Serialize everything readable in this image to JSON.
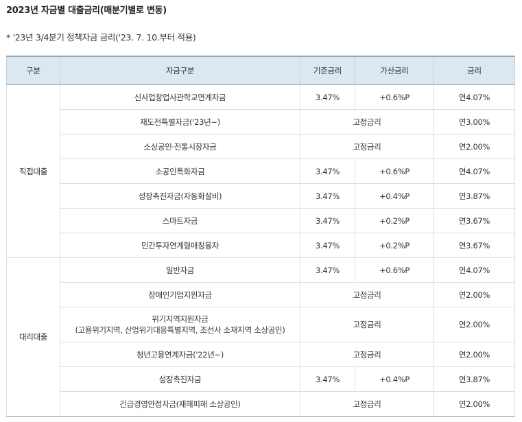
{
  "page": {
    "title": "2023년 자금별 대출금리(매분기별로 변동)",
    "note": "* '23년 3/4분기 정책자금 금리('23. 7. 10.부터 적용)"
  },
  "table": {
    "headers": [
      "구분",
      "자금구분",
      "기준금리",
      "가산금리",
      "금리"
    ],
    "groups": [
      {
        "category": "직접대출",
        "rows": [
          {
            "fund": "신사업창업사관학교연계자금",
            "base": "3.47%",
            "add": "+0.6%P",
            "rate": "연4.07%"
          },
          {
            "fund": "재도전특별자금('23년~)",
            "fixed": "고정금리",
            "rate": "연3.00%"
          },
          {
            "fund": "소상공인·전통시장자금",
            "fixed": "고정금리",
            "rate": "연2.00%"
          },
          {
            "fund": "소공인특화자금",
            "base": "3.47%",
            "add": "+0.6%P",
            "rate": "연4.07%"
          },
          {
            "fund": "성장촉진자금(자동화설비)",
            "base": "3.47%",
            "add": "+0.4%P",
            "rate": "연3.87%"
          },
          {
            "fund": "스마트자금",
            "base": "3.47%",
            "add": "+0.2%P",
            "rate": "연3.67%"
          },
          {
            "fund": "민간투자연계형매칭융자",
            "base": "3.47%",
            "add": "+0.2%P",
            "rate": "연3.67%"
          }
        ]
      },
      {
        "category": "대리대출",
        "rows": [
          {
            "fund": "일반자금",
            "base": "3.47%",
            "add": "+0.6%P",
            "rate": "연4.07%"
          },
          {
            "fund": "장애인기업지원자금",
            "fixed": "고정금리",
            "rate": "연2.00%"
          },
          {
            "fund": "위기지역지원자금",
            "fund_sub": "(고용위기지역, 산업위기대응특별지역, 조선사 소재지역 소상공인)",
            "fixed": "고정금리",
            "rate": "연2.00%"
          },
          {
            "fund": "청년고용연계자금('22년~)",
            "fixed": "고정금리",
            "rate": "연2.00%"
          },
          {
            "fund": "성장촉진자금",
            "base": "3.47%",
            "add": "+0.4%P",
            "rate": "연3.87%"
          },
          {
            "fund": "긴급경영안정자금(재해피해 소상공인)",
            "fixed": "고정금리",
            "rate": "연2.00%"
          }
        ]
      }
    ]
  }
}
